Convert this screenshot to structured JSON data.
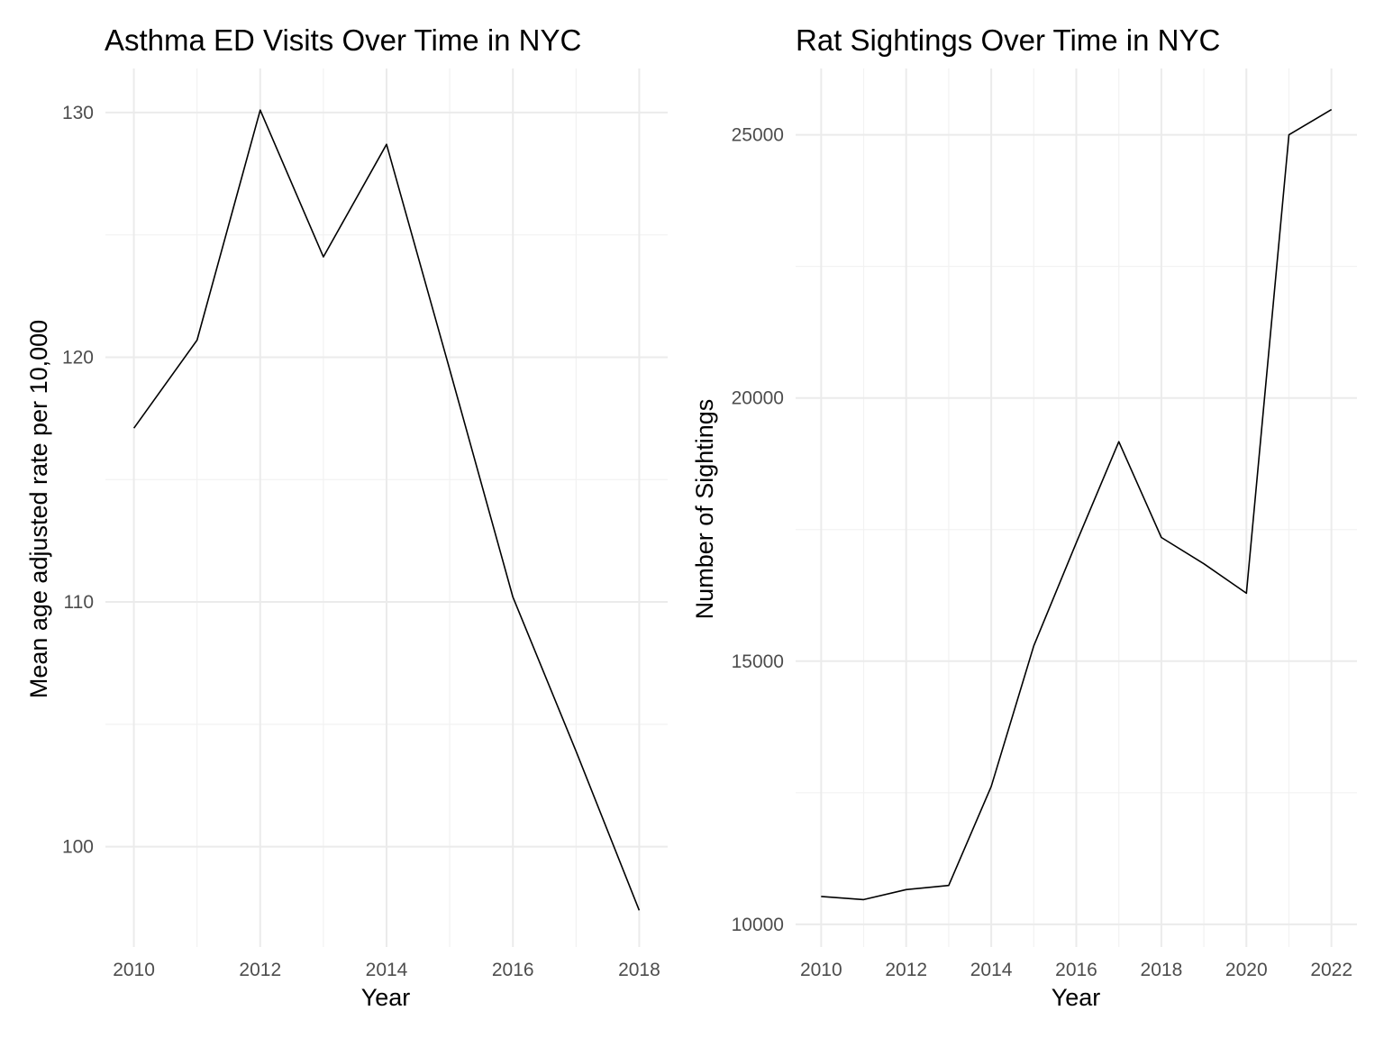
{
  "chart_data": [
    {
      "type": "line",
      "title": "Asthma ED Visits Over Time in NYC",
      "xlabel": "Year",
      "ylabel": "Mean age adjusted rate per 10,000",
      "x": [
        2010,
        2011,
        2012,
        2013,
        2014,
        2015,
        2016,
        2017,
        2018
      ],
      "series": [
        {
          "values": [
            117.1,
            120.7,
            130.1,
            124.1,
            128.7,
            119.5,
            110.2,
            103.9,
            97.4
          ]
        }
      ],
      "xlim": [
        2009.55,
        2018.45
      ],
      "ylim": [
        95.9,
        131.8
      ],
      "x_ticks": [
        2010,
        2012,
        2014,
        2016,
        2018
      ],
      "x_tick_labels": [
        "2010",
        "2012",
        "2014",
        "2016",
        "2018"
      ],
      "x_minor_ticks": [
        2011,
        2013,
        2015,
        2017
      ],
      "y_ticks": [
        100,
        110,
        120,
        130
      ],
      "y_tick_labels": [
        "100",
        "110",
        "120",
        "130"
      ],
      "y_minor_ticks": [
        105,
        115,
        125
      ],
      "grid": true,
      "line_color": "#000000"
    },
    {
      "type": "line",
      "title": "Rat Sightings Over Time in NYC",
      "xlabel": "Year",
      "ylabel": "Number of Sightings",
      "x": [
        2010,
        2011,
        2012,
        2013,
        2014,
        2015,
        2016,
        2017,
        2018,
        2019,
        2020,
        2021,
        2022
      ],
      "series": [
        {
          "values": [
            10530,
            10470,
            10660,
            10740,
            12620,
            15290,
            17250,
            19170,
            17350,
            16850,
            16290,
            25000,
            25480
          ]
        }
      ],
      "xlim": [
        2009.4,
        2022.6
      ],
      "ylim": [
        9570,
        26260
      ],
      "x_ticks": [
        2010,
        2012,
        2014,
        2016,
        2018,
        2020,
        2022
      ],
      "x_tick_labels": [
        "2010",
        "2012",
        "2014",
        "2016",
        "2018",
        "2020",
        "2022"
      ],
      "x_minor_ticks": [
        2011,
        2013,
        2015,
        2017,
        2019,
        2021
      ],
      "y_ticks": [
        10000,
        15000,
        20000,
        25000
      ],
      "y_tick_labels": [
        "10000",
        "15000",
        "20000",
        "25000"
      ],
      "y_minor_ticks": [
        12500,
        17500,
        22500
      ],
      "grid": true,
      "line_color": "#000000"
    }
  ]
}
